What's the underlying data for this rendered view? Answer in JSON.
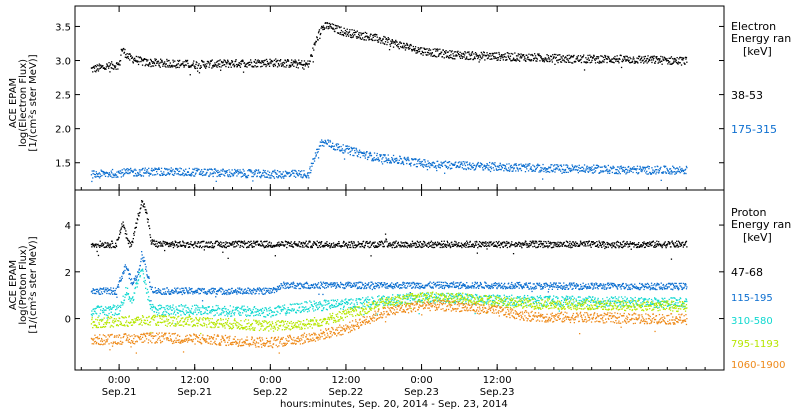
{
  "chart_data": [
    {
      "type": "scatter",
      "ylabel": [
        "ACE EPAM",
        "log(Electron Flux)",
        "[1/(cm²s ster MeV)]"
      ],
      "ylim": [
        1.1,
        3.8
      ],
      "yticks": [
        "1.5",
        "2.0",
        "2.5",
        "3.0",
        "3.5"
      ],
      "yticks_v": [
        1.5,
        2.0,
        2.5,
        3.0,
        3.5
      ],
      "legend_title": [
        "Electron",
        "Energy ran",
        "[keV]"
      ],
      "series": [
        {
          "name": "38-53",
          "color": "#000000",
          "x": [
            -4.5,
            0,
            0.3,
            1.5,
            4,
            12,
            24,
            30,
            31,
            32,
            33,
            34,
            36,
            40,
            44,
            48,
            52,
            56,
            60,
            66,
            72,
            78,
            84,
            90
          ],
          "y": [
            2.88,
            2.95,
            3.18,
            3.05,
            2.98,
            2.95,
            2.98,
            2.95,
            3.25,
            3.48,
            3.52,
            3.48,
            3.42,
            3.35,
            3.25,
            3.15,
            3.1,
            3.08,
            3.07,
            3.05,
            3.03,
            3.03,
            3.02,
            3.0
          ]
        },
        {
          "name": "175-315",
          "color": "#0d6fd0",
          "x": [
            -4.5,
            0,
            6,
            12,
            24,
            30,
            31,
            32,
            33,
            34,
            36,
            40,
            44,
            48,
            52,
            56,
            60,
            66,
            72,
            78,
            84,
            90
          ],
          "y": [
            1.33,
            1.36,
            1.38,
            1.37,
            1.34,
            1.34,
            1.6,
            1.8,
            1.8,
            1.75,
            1.7,
            1.6,
            1.55,
            1.5,
            1.48,
            1.46,
            1.45,
            1.43,
            1.42,
            1.41,
            1.4,
            1.4
          ]
        }
      ]
    },
    {
      "type": "scatter",
      "ylabel": [
        "ACE EPAM",
        "log(Proton Flux)",
        "[1/(cm²s ster MeV)]"
      ],
      "ylim": [
        -2.2,
        5.5
      ],
      "yticks": [
        "0",
        "2",
        "4"
      ],
      "yticks_v": [
        0,
        2,
        4
      ],
      "legend_title": [
        "Proton",
        "Energy ran",
        "[keV]"
      ],
      "xlabel": "hours:minutes, Sep. 20, 2014 - Sep. 23, 2014",
      "xlim": [
        -7,
        96
      ],
      "xticks": [
        {
          "t": 0,
          "top": "0:00",
          "bottom": "Sep.21"
        },
        {
          "t": 12,
          "top": "12:00",
          "bottom": "Sep.21"
        },
        {
          "t": 24,
          "top": "0:00",
          "bottom": "Sep.22"
        },
        {
          "t": 36,
          "top": "12:00",
          "bottom": "Sep.22"
        },
        {
          "t": 48,
          "top": "0:00",
          "bottom": "Sep.23"
        },
        {
          "t": 60,
          "top": "12:00",
          "bottom": "Sep.23"
        }
      ],
      "series": [
        {
          "name": "47-68",
          "color": "#000000",
          "x": [
            -4.5,
            -0.5,
            0,
            0.5,
            1,
            1.5,
            2,
            3,
            3.5,
            4,
            4.5,
            5,
            6,
            12,
            24,
            36,
            42,
            42.2,
            42.5,
            48,
            54,
            60,
            66,
            90
          ],
          "y": [
            3.2,
            3.2,
            3.7,
            4.1,
            3.6,
            3.2,
            3.3,
            4.5,
            5.0,
            4.8,
            4.2,
            3.3,
            3.2,
            3.2,
            3.2,
            3.2,
            3.2,
            3.6,
            3.2,
            3.2,
            3.2,
            3.2,
            3.2,
            3.2
          ]
        },
        {
          "name": "115-195",
          "color": "#0d6fd0",
          "x": [
            -4.5,
            -0.5,
            0,
            1,
            2,
            3,
            3.5,
            4,
            4.5,
            5,
            6,
            12,
            24,
            26,
            30,
            36,
            42,
            48,
            54,
            60,
            66,
            90
          ],
          "y": [
            1.2,
            1.2,
            1.6,
            2.3,
            1.5,
            2.0,
            2.8,
            2.4,
            1.8,
            1.3,
            1.2,
            1.2,
            1.2,
            1.45,
            1.45,
            1.45,
            1.45,
            1.45,
            1.45,
            1.45,
            1.42,
            1.4
          ]
        },
        {
          "name": "310-580",
          "color": "#10d8d0",
          "x": [
            -4.5,
            0,
            1,
            2,
            3,
            3.5,
            4,
            5,
            6,
            12,
            24,
            30,
            36,
            42,
            48,
            54,
            60,
            66,
            90
          ],
          "y": [
            0.35,
            0.4,
            1.2,
            0.8,
            1.8,
            2.2,
            1.5,
            0.5,
            0.4,
            0.4,
            0.3,
            0.55,
            0.65,
            0.8,
            0.9,
            0.88,
            0.82,
            0.78,
            0.7
          ]
        },
        {
          "name": "795-1193",
          "color": "#b6e600",
          "x": [
            -4.5,
            0,
            6,
            12,
            24,
            30,
            36,
            42,
            48,
            54,
            60,
            66,
            90
          ],
          "y": [
            -0.15,
            -0.1,
            -0.05,
            -0.1,
            -0.3,
            -0.2,
            0.2,
            0.7,
            0.95,
            0.9,
            0.75,
            0.65,
            0.55
          ]
        },
        {
          "name": "1060-1900",
          "color": "#ee8a1a",
          "x": [
            -4.5,
            0,
            6,
            12,
            24,
            30,
            36,
            42,
            48,
            54,
            60,
            66,
            90
          ],
          "y": [
            -0.9,
            -0.85,
            -0.8,
            -0.85,
            -1.0,
            -0.8,
            -0.4,
            0.3,
            0.6,
            0.55,
            0.35,
            0.1,
            0.0
          ]
        }
      ]
    }
  ]
}
